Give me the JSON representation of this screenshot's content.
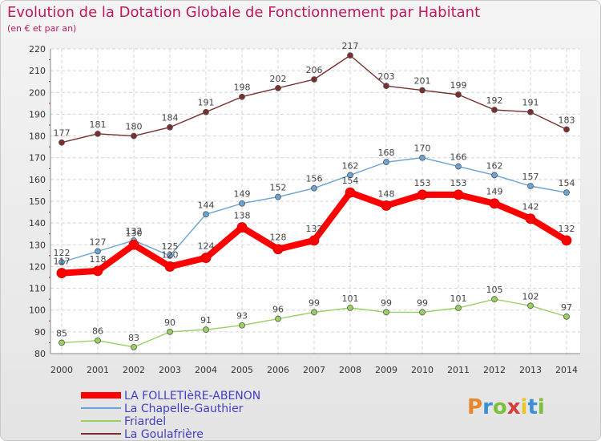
{
  "chart_data": {
    "type": "line",
    "title": "Evolution de la Dotation Globale de Fonctionnement par Habitant",
    "subtitle": "(en € et par an)",
    "x": [
      "2000",
      "2001",
      "2002",
      "2003",
      "2004",
      "2005",
      "2006",
      "2007",
      "2008",
      "2009",
      "2010",
      "2011",
      "2012",
      "2013",
      "2014"
    ],
    "ylim": [
      80,
      220
    ],
    "yticks": [
      80,
      90,
      100,
      110,
      120,
      130,
      140,
      150,
      160,
      170,
      180,
      190,
      200,
      210,
      220
    ],
    "grid": true,
    "legend_position": "bottom-left",
    "series": [
      {
        "name": "LA FOLLETIèRE-ABENON",
        "color": "#ff0000",
        "values": [
          117,
          118,
          130,
          120,
          124,
          138,
          128,
          132,
          154,
          148,
          153,
          153,
          149,
          142,
          132
        ]
      },
      {
        "name": "La Chapelle-Gauthier",
        "color": "#6aa3d5",
        "values": [
          122,
          127,
          132,
          125,
          144,
          149,
          152,
          156,
          162,
          168,
          170,
          166,
          162,
          157,
          154
        ]
      },
      {
        "name": "Friardel",
        "color": "#99d161",
        "values": [
          85,
          86,
          83,
          90,
          91,
          93,
          96,
          99,
          101,
          99,
          99,
          101,
          105,
          102,
          97
        ]
      },
      {
        "name": "La Goulafrière",
        "color": "#7a2e2e",
        "values": [
          177,
          181,
          180,
          184,
          191,
          198,
          202,
          206,
          217,
          203,
          201,
          199,
          192,
          191,
          183
        ]
      }
    ]
  },
  "logo": {
    "letters": [
      "P",
      "r",
      "o",
      "x",
      "i",
      "t",
      "i"
    ],
    "colors": [
      "#e8862a",
      "#3a8fd9",
      "#7bbf3a",
      "#d93a3a",
      "#e8c62a",
      "#3a8fd9",
      "#7bbf3a"
    ]
  }
}
